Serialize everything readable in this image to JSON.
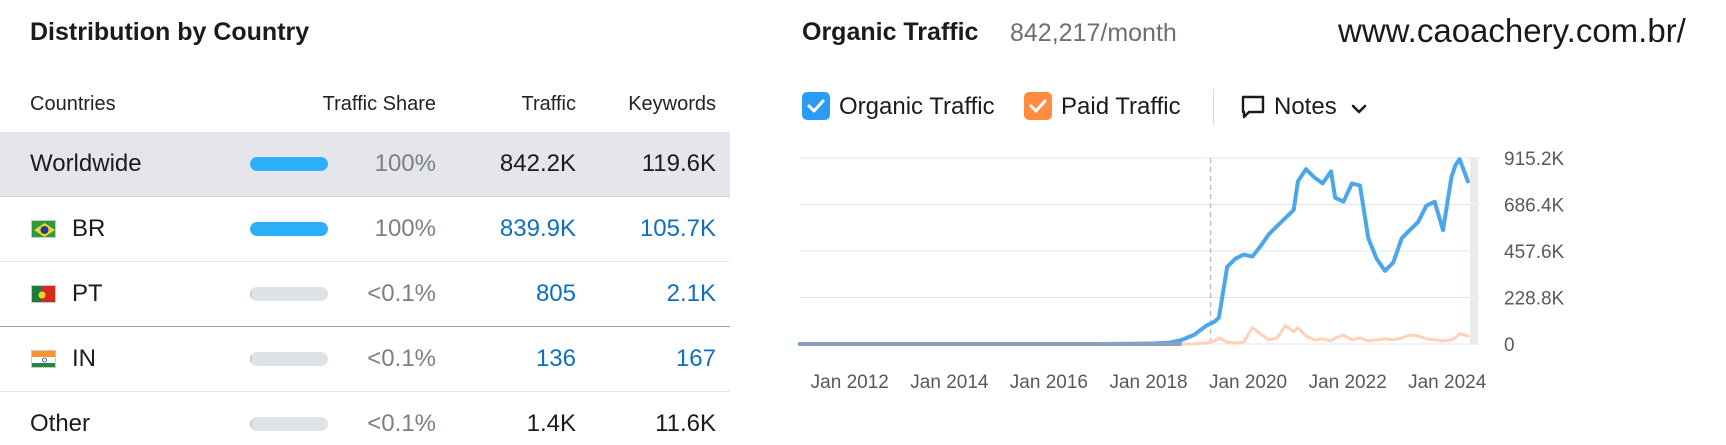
{
  "left_panel": {
    "title": "Distribution by Country",
    "columns": {
      "countries": "Countries",
      "traffic_share": "Traffic Share",
      "traffic": "Traffic",
      "keywords": "Keywords"
    },
    "rows": [
      {
        "name": "Worldwide",
        "flag": null,
        "share_fraction": 1.0,
        "share": "100%",
        "traffic": "842.2K",
        "keywords": "119.6K",
        "linked": false,
        "selected": true
      },
      {
        "name": "BR",
        "flag": "brazil-flag",
        "share_fraction": 0.997,
        "share": "100%",
        "traffic": "839.9K",
        "keywords": "105.7K",
        "linked": true,
        "selected": false
      },
      {
        "name": "PT",
        "flag": "portugal-flag",
        "share_fraction": 0.001,
        "share": "<0.1%",
        "traffic": "805",
        "keywords": "2.1K",
        "linked": true,
        "selected": false
      },
      {
        "name": "IN",
        "flag": "india-flag",
        "share_fraction": 0.0002,
        "share": "<0.1%",
        "traffic": "136",
        "keywords": "167",
        "linked": true,
        "selected": false
      },
      {
        "name": "Other",
        "flag": null,
        "share_fraction": 0.002,
        "share": "<0.1%",
        "traffic": "1.4K",
        "keywords": "11.6K",
        "linked": false,
        "selected": false
      }
    ]
  },
  "right_panel": {
    "title": "Organic Traffic",
    "subtitle": "842,217/month",
    "domain": "www.caoachery.com.br/",
    "legend": {
      "organic_label": "Organic Traffic",
      "paid_label": "Paid Traffic",
      "notes_label": "Notes",
      "organic_color": "#2b9cf4",
      "paid_color": "#ff8c42",
      "notes_icon": "comment-icon",
      "dropdown_icon": "chevron-down-icon"
    }
  },
  "chart_data": {
    "type": "line",
    "x_unit": "date",
    "x": [
      "2011-01",
      "2012-01",
      "2013-01",
      "2014-01",
      "2015-01",
      "2016-01",
      "2017-01",
      "2018-01",
      "2018-06",
      "2018-09",
      "2018-12",
      "2019-03",
      "2019-05",
      "2019-06",
      "2019-08",
      "2019-10",
      "2019-12",
      "2020-02",
      "2020-04",
      "2020-06",
      "2020-08",
      "2020-10",
      "2020-12",
      "2021-01",
      "2021-03",
      "2021-05",
      "2021-07",
      "2021-09",
      "2021-10",
      "2021-12",
      "2022-02",
      "2022-04",
      "2022-06",
      "2022-08",
      "2022-10",
      "2022-12",
      "2023-02",
      "2023-04",
      "2023-06",
      "2023-08",
      "2023-10",
      "2023-12",
      "2024-02",
      "2024-03",
      "2024-04",
      "2024-06"
    ],
    "series": [
      {
        "name": "Organic Traffic",
        "color": "#4ba6ea",
        "values": [
          0,
          0,
          0,
          0,
          0,
          0,
          0,
          2000,
          6000,
          20000,
          45000,
          90000,
          110000,
          130000,
          380000,
          420000,
          440000,
          430000,
          480000,
          540000,
          580000,
          620000,
          660000,
          800000,
          860000,
          820000,
          790000,
          850000,
          720000,
          700000,
          790000,
          780000,
          520000,
          420000,
          360000,
          400000,
          520000,
          560000,
          600000,
          680000,
          700000,
          560000,
          820000,
          880000,
          910000,
          800000
        ]
      },
      {
        "name": "Paid Traffic",
        "color": "#ffd2b8",
        "values": [
          0,
          0,
          0,
          0,
          0,
          0,
          0,
          0,
          0,
          0,
          0,
          5000,
          15000,
          30000,
          10000,
          5000,
          10000,
          80000,
          50000,
          20000,
          30000,
          90000,
          60000,
          80000,
          40000,
          20000,
          25000,
          15000,
          30000,
          45000,
          20000,
          30000,
          15000,
          20000,
          25000,
          20000,
          30000,
          45000,
          40000,
          25000,
          20000,
          15000,
          20000,
          30000,
          50000,
          40000
        ]
      }
    ],
    "x_ticks": [
      "Jan 2012",
      "Jan 2014",
      "Jan 2016",
      "Jan 2018",
      "Jan 2020",
      "Jan 2022",
      "Jan 2024"
    ],
    "y_ticks": [
      "915.2K",
      "686.4K",
      "457.6K",
      "228.8K",
      "0"
    ],
    "ylim": [
      0,
      915200
    ],
    "grid": true,
    "marker_line": "2019-04"
  }
}
